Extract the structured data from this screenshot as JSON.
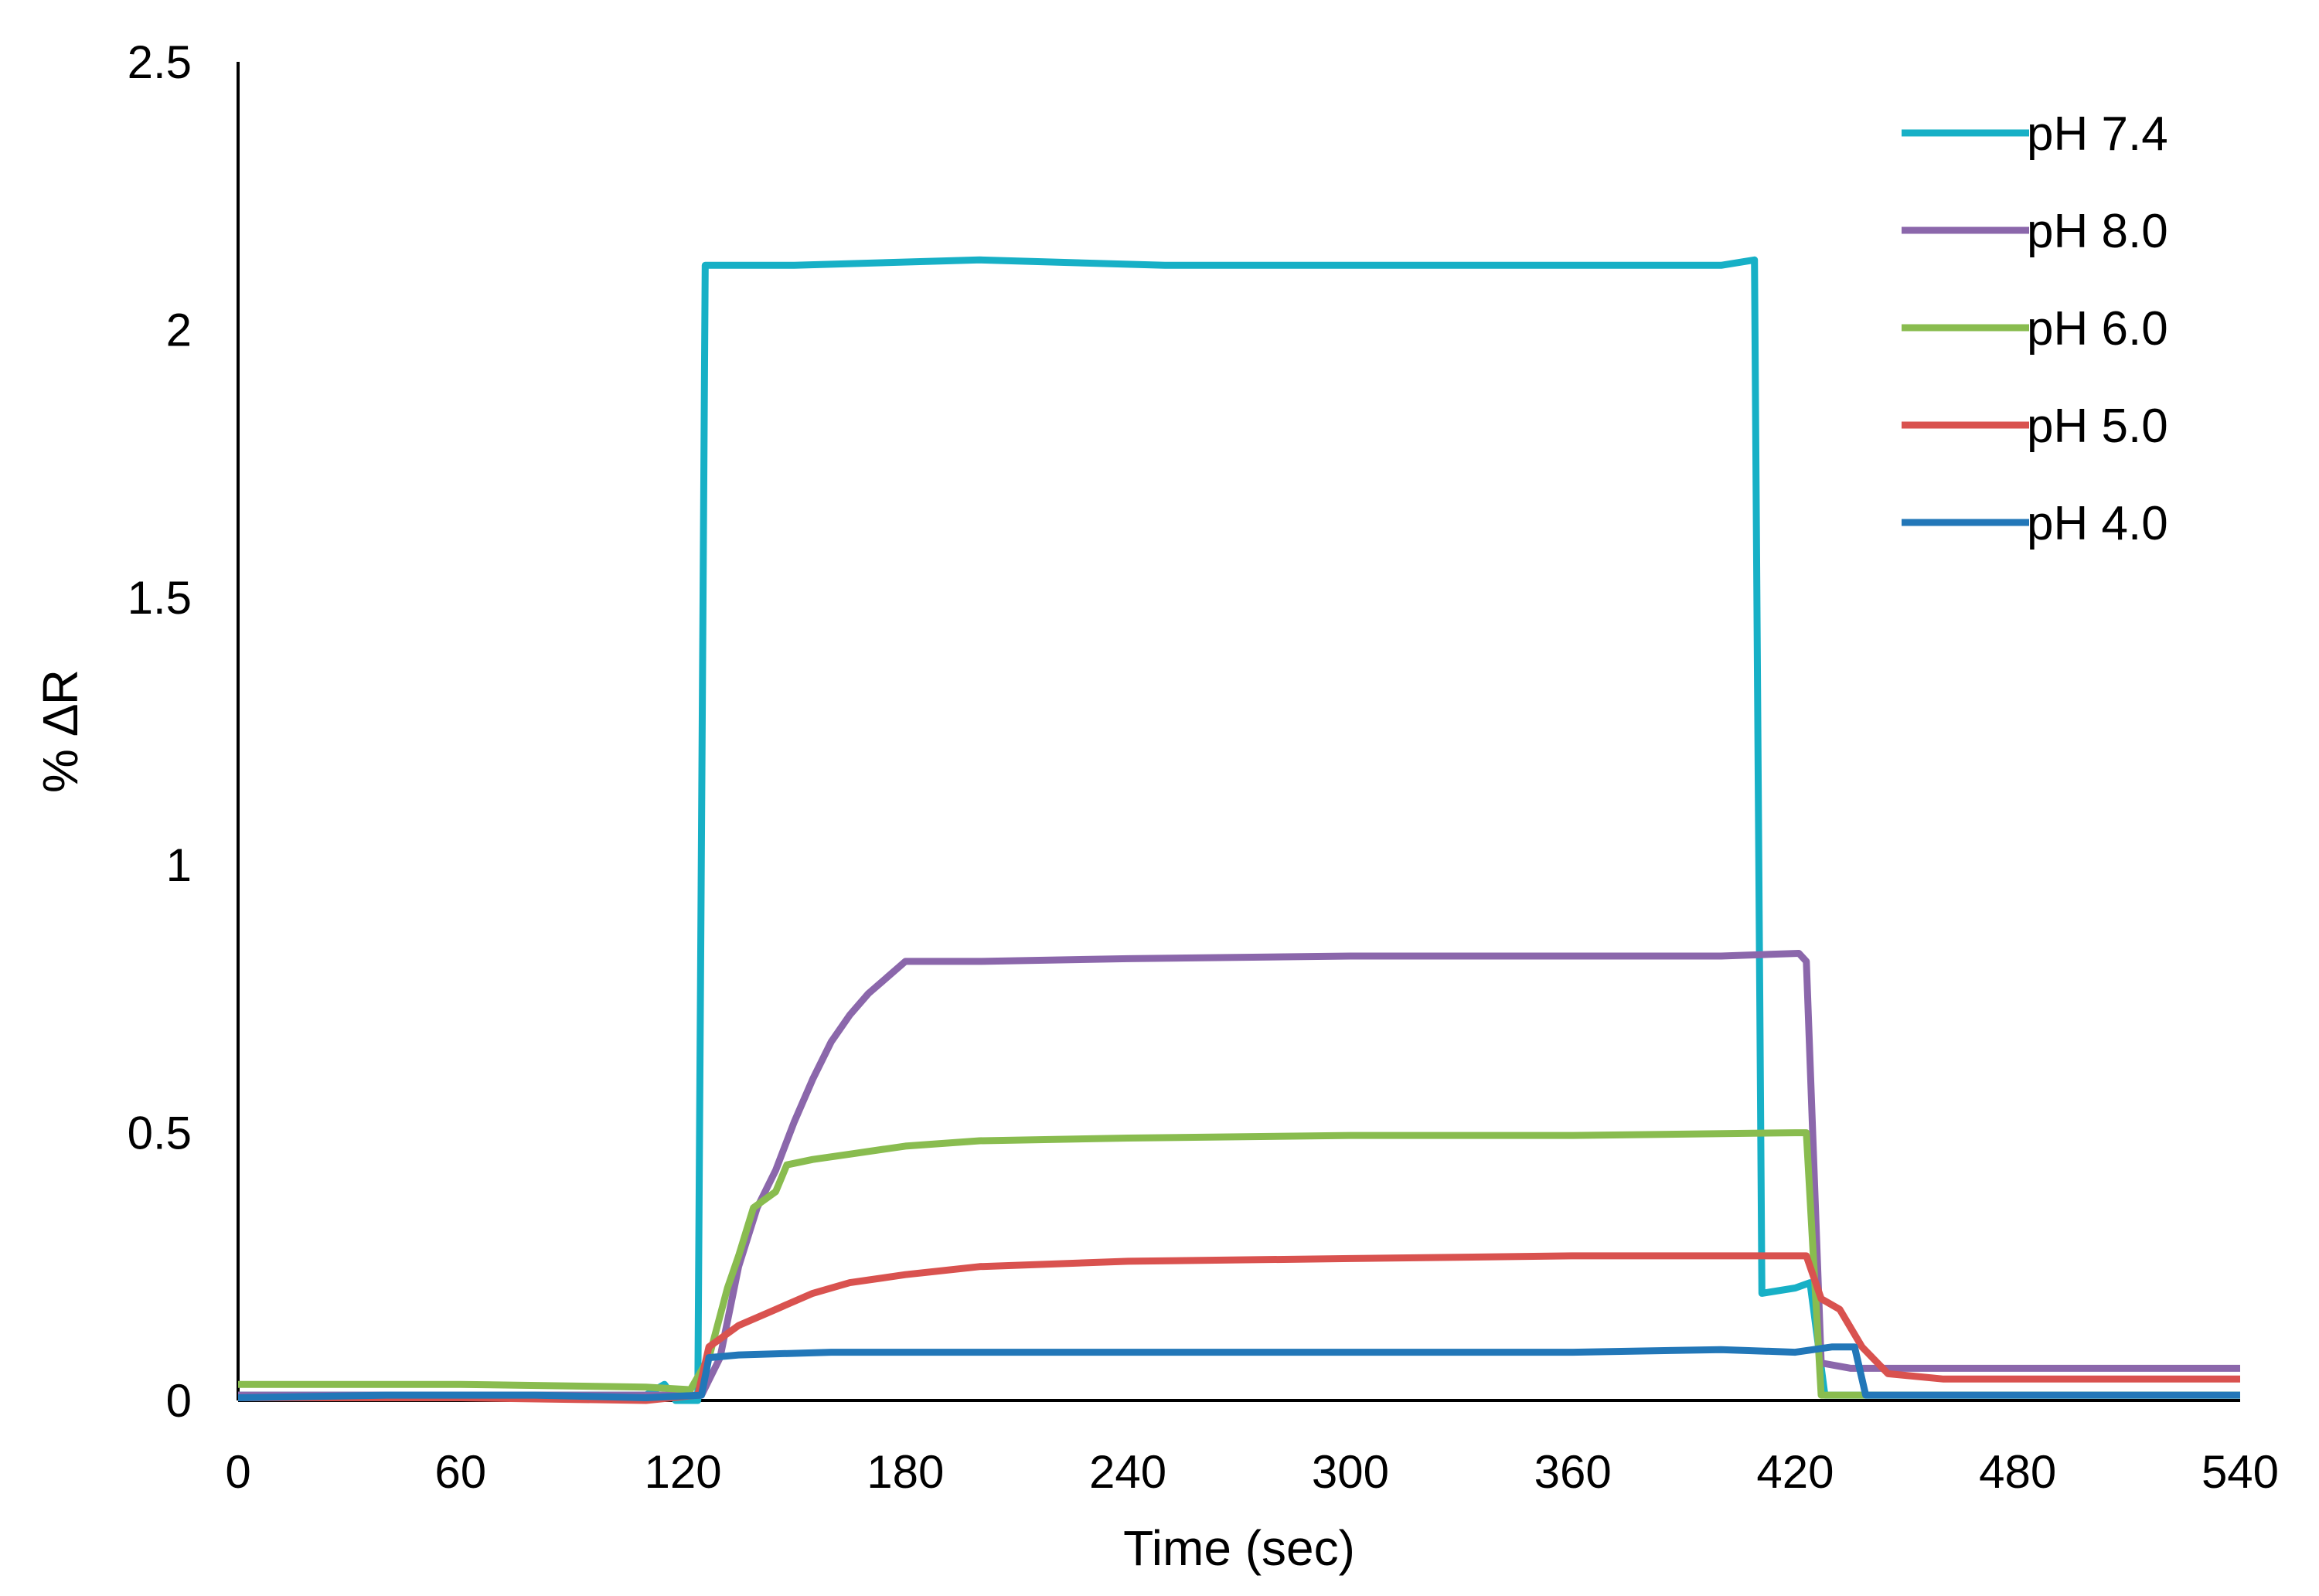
{
  "chart_data": {
    "type": "line",
    "title": "",
    "xlabel": "Time (sec)",
    "ylabel": "% ∆R",
    "xlim": [
      0,
      540
    ],
    "ylim": [
      0,
      2.5
    ],
    "x_ticks": [
      0,
      60,
      120,
      180,
      240,
      300,
      360,
      420,
      480,
      540
    ],
    "x_tick_labels": [
      "0",
      "60",
      "120",
      "180",
      "240",
      "300",
      "360",
      "420",
      "480",
      "540"
    ],
    "y_ticks": [
      0,
      0.5,
      1,
      1.5,
      2,
      2.5
    ],
    "y_tick_labels": [
      "0",
      "0.5",
      "1",
      "1.5",
      "2",
      "2.5"
    ],
    "grid": false,
    "legend_position": "top-right",
    "series": [
      {
        "name": "pH 7.4",
        "color": "#17B0C6",
        "points": [
          [
            0,
            0.01
          ],
          [
            60,
            0.01
          ],
          [
            110,
            0.01
          ],
          [
            115,
            0.03
          ],
          [
            118,
            0.0
          ],
          [
            124,
            0.0
          ],
          [
            126,
            2.12
          ],
          [
            150,
            2.12
          ],
          [
            200,
            2.13
          ],
          [
            250,
            2.12
          ],
          [
            300,
            2.12
          ],
          [
            350,
            2.12
          ],
          [
            400,
            2.12
          ],
          [
            409,
            2.13
          ],
          [
            411,
            0.2
          ],
          [
            420,
            0.21
          ],
          [
            424,
            0.22
          ],
          [
            428,
            0.01
          ],
          [
            440,
            0.01
          ],
          [
            480,
            0.01
          ],
          [
            540,
            0.01
          ]
        ]
      },
      {
        "name": "pH 8.0",
        "color": "#8B67AB",
        "points": [
          [
            0,
            0.01
          ],
          [
            60,
            0.01
          ],
          [
            110,
            0.01
          ],
          [
            125,
            0.01
          ],
          [
            130,
            0.08
          ],
          [
            135,
            0.25
          ],
          [
            140,
            0.36
          ],
          [
            145,
            0.43
          ],
          [
            150,
            0.52
          ],
          [
            155,
            0.6
          ],
          [
            160,
            0.67
          ],
          [
            165,
            0.72
          ],
          [
            170,
            0.76
          ],
          [
            175,
            0.79
          ],
          [
            180,
            0.82
          ],
          [
            190,
            0.82
          ],
          [
            200,
            0.82
          ],
          [
            240,
            0.825
          ],
          [
            300,
            0.83
          ],
          [
            360,
            0.83
          ],
          [
            400,
            0.83
          ],
          [
            421,
            0.835
          ],
          [
            423,
            0.82
          ],
          [
            427,
            0.07
          ],
          [
            435,
            0.06
          ],
          [
            480,
            0.06
          ],
          [
            540,
            0.06
          ]
        ]
      },
      {
        "name": "pH 6.0",
        "color": "#89BC4F",
        "points": [
          [
            0,
            0.03
          ],
          [
            60,
            0.03
          ],
          [
            110,
            0.025
          ],
          [
            122,
            0.02
          ],
          [
            127,
            0.08
          ],
          [
            132,
            0.21
          ],
          [
            135,
            0.27
          ],
          [
            139,
            0.36
          ],
          [
            145,
            0.39
          ],
          [
            148,
            0.44
          ],
          [
            155,
            0.45
          ],
          [
            165,
            0.46
          ],
          [
            180,
            0.475
          ],
          [
            200,
            0.485
          ],
          [
            240,
            0.49
          ],
          [
            300,
            0.495
          ],
          [
            360,
            0.495
          ],
          [
            420,
            0.5
          ],
          [
            423,
            0.5
          ],
          [
            427,
            0.01
          ],
          [
            440,
            0.01
          ],
          [
            480,
            0.01
          ],
          [
            540,
            0.01
          ]
        ]
      },
      {
        "name": "pH 5.0",
        "color": "#D9524F",
        "points": [
          [
            0,
            0.005
          ],
          [
            60,
            0.005
          ],
          [
            110,
            0.0
          ],
          [
            124,
            0.01
          ],
          [
            127,
            0.1
          ],
          [
            135,
            0.14
          ],
          [
            145,
            0.17
          ],
          [
            155,
            0.2
          ],
          [
            165,
            0.22
          ],
          [
            180,
            0.235
          ],
          [
            200,
            0.25
          ],
          [
            240,
            0.26
          ],
          [
            300,
            0.265
          ],
          [
            360,
            0.27
          ],
          [
            420,
            0.27
          ],
          [
            423,
            0.27
          ],
          [
            427,
            0.19
          ],
          [
            432,
            0.17
          ],
          [
            438,
            0.1
          ],
          [
            445,
            0.05
          ],
          [
            460,
            0.04
          ],
          [
            500,
            0.04
          ],
          [
            540,
            0.04
          ]
        ]
      },
      {
        "name": "pH 4.0",
        "color": "#2277B8",
        "points": [
          [
            0,
            0.005
          ],
          [
            40,
            0.01
          ],
          [
            80,
            0.01
          ],
          [
            110,
            0.005
          ],
          [
            125,
            0.01
          ],
          [
            127,
            0.08
          ],
          [
            135,
            0.085
          ],
          [
            160,
            0.09
          ],
          [
            200,
            0.09
          ],
          [
            240,
            0.09
          ],
          [
            300,
            0.09
          ],
          [
            360,
            0.09
          ],
          [
            400,
            0.095
          ],
          [
            420,
            0.09
          ],
          [
            430,
            0.1
          ],
          [
            436,
            0.1
          ],
          [
            439,
            0.01
          ],
          [
            460,
            0.01
          ],
          [
            500,
            0.01
          ],
          [
            540,
            0.01
          ]
        ]
      }
    ]
  }
}
